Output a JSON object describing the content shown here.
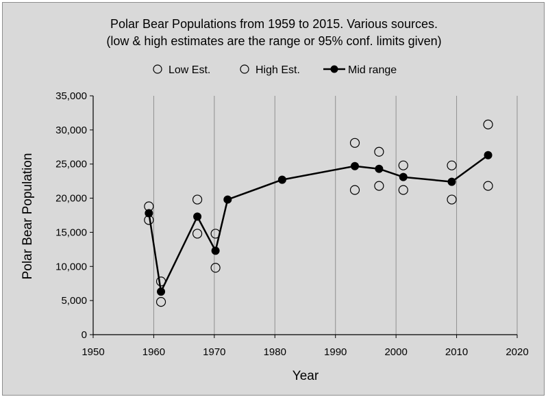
{
  "chart_data": {
    "type": "scatter",
    "title": "Polar Bear Populations from 1959 to 2015. Various sources.",
    "subtitle": "(low & high estimates are the range or 95% conf. limits given)",
    "xlabel": "Year",
    "ylabel": "Polar Bear Population",
    "xlim": [
      1950,
      2020
    ],
    "ylim": [
      0,
      35000
    ],
    "x_ticks": [
      1950,
      1960,
      1970,
      1980,
      1990,
      2000,
      2010,
      2020
    ],
    "y_ticks": [
      0,
      5000,
      10000,
      15000,
      20000,
      25000,
      30000,
      35000
    ],
    "y_tick_labels": [
      "0",
      "5,000",
      "10,000",
      "15,000",
      "20,000",
      "25,000",
      "30,000",
      "35,000"
    ],
    "grid": "vertical",
    "legend_position": "top",
    "series": [
      {
        "name": "Low Est.",
        "marker": "open-circle",
        "points": [
          [
            1959.2,
            16800
          ],
          [
            1961.2,
            4800
          ],
          [
            1967.2,
            14800
          ],
          [
            1970.2,
            9800
          ],
          [
            1993.2,
            21200
          ],
          [
            1997.2,
            21800
          ],
          [
            2001.2,
            21200
          ],
          [
            2009.2,
            19800
          ],
          [
            2015.2,
            21800
          ]
        ]
      },
      {
        "name": "High Est.",
        "marker": "open-circle",
        "points": [
          [
            1959.2,
            18800
          ],
          [
            1961.2,
            7800
          ],
          [
            1967.2,
            19800
          ],
          [
            1970.2,
            14800
          ],
          [
            1993.2,
            28100
          ],
          [
            1997.2,
            26800
          ],
          [
            2001.2,
            24800
          ],
          [
            2009.2,
            24800
          ],
          [
            2015.2,
            30800
          ]
        ]
      },
      {
        "name": "Mid range",
        "marker": "filled-circle-line",
        "points": [
          [
            1959.2,
            17800
          ],
          [
            1961.2,
            6300
          ],
          [
            1967.2,
            17300
          ],
          [
            1970.2,
            12300
          ],
          [
            1972.2,
            19800
          ],
          [
            1981.2,
            22700
          ],
          [
            1993.2,
            24700
          ],
          [
            1997.2,
            24300
          ],
          [
            2001.2,
            23100
          ],
          [
            2009.2,
            22400
          ],
          [
            2015.2,
            26300
          ]
        ]
      }
    ]
  }
}
